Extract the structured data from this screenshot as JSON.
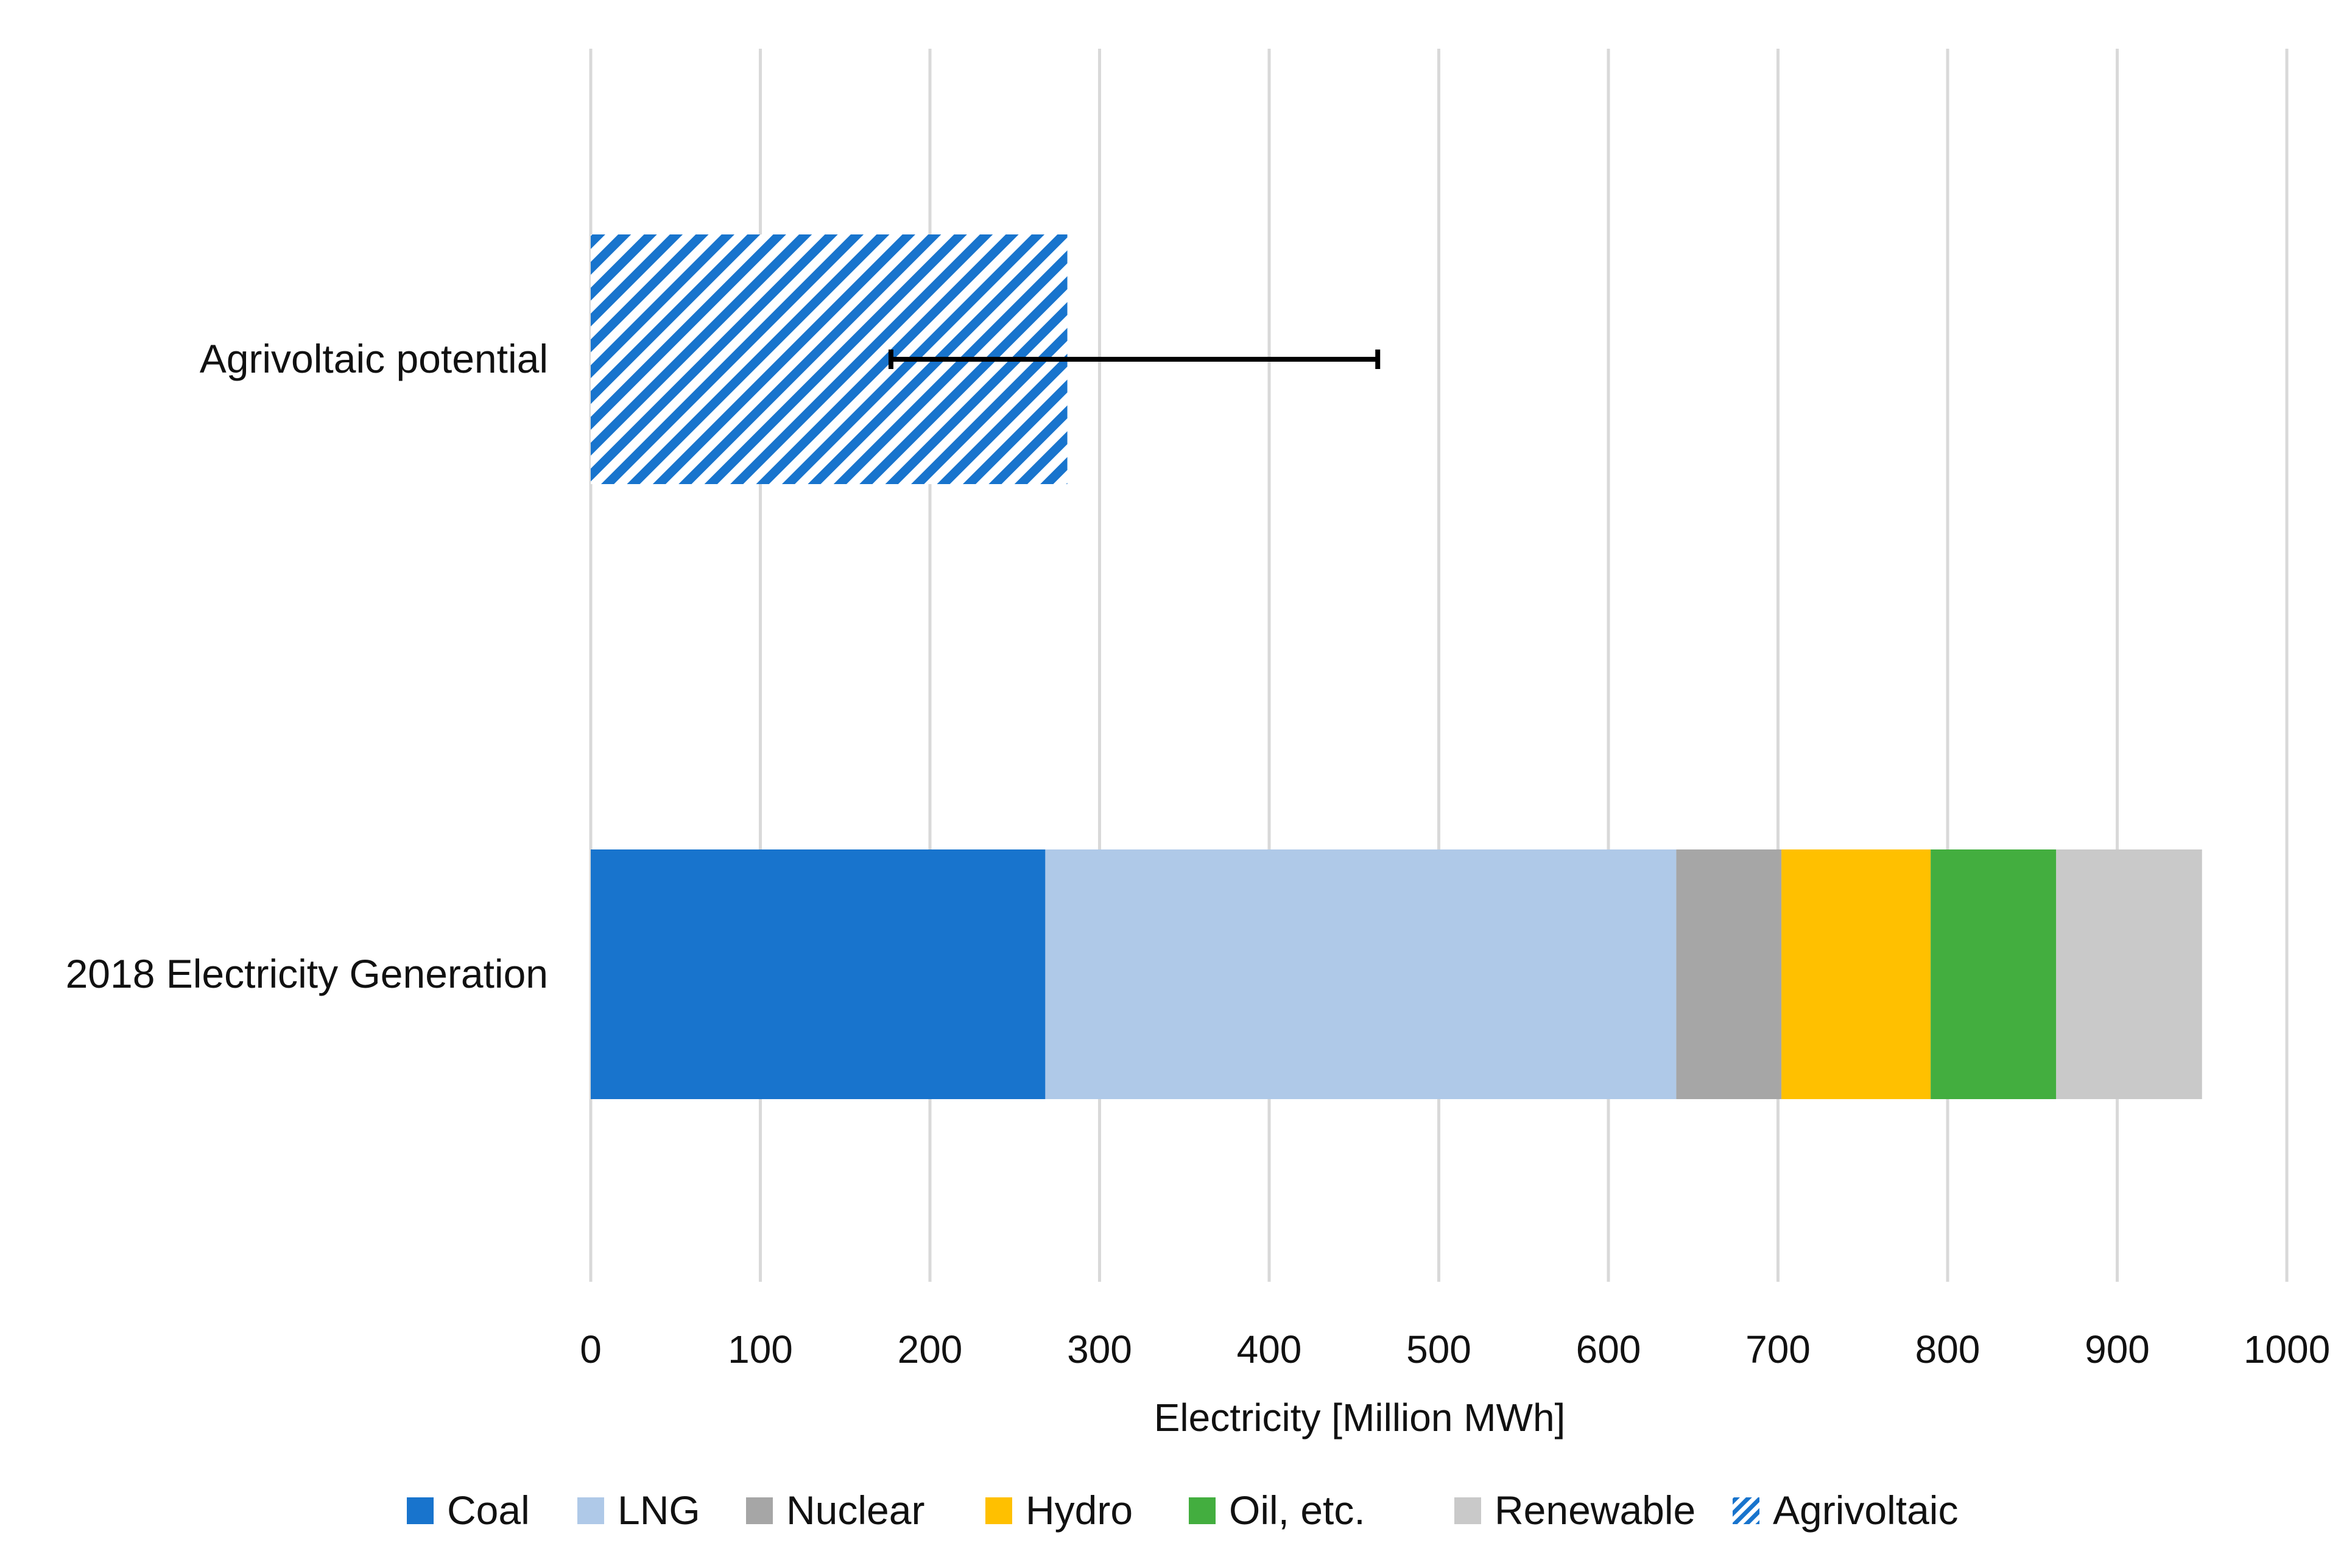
{
  "chart_data": {
    "type": "bar",
    "orientation": "horizontal",
    "stacked": true,
    "title": "",
    "xlabel": "Electricity [Million MWh]",
    "ylabel": "",
    "xlim": [
      0,
      1000
    ],
    "x_ticks": [
      0,
      100,
      200,
      300,
      400,
      500,
      600,
      700,
      800,
      900,
      1000
    ],
    "grid": true,
    "legend_position": "bottom",
    "categories": [
      "Agrivoltaic potential",
      "2018 Electricity Generation"
    ],
    "series": [
      {
        "name": "Coal",
        "color": "#1874CD",
        "values": [
          0,
          268
        ]
      },
      {
        "name": "LNG",
        "color": "#AFC9E8",
        "values": [
          0,
          372
        ]
      },
      {
        "name": "Nuclear",
        "color": "#A6A6A6",
        "values": [
          0,
          62
        ]
      },
      {
        "name": "Hydro",
        "color": "#FFC000",
        "values": [
          0,
          88
        ]
      },
      {
        "name": "Oil, etc.",
        "color": "#43AE3F",
        "values": [
          0,
          74
        ]
      },
      {
        "name": "Renewable",
        "color": "#C9C9C9",
        "values": [
          0,
          86
        ]
      },
      {
        "name": "Agrivoltaic",
        "color": "#1874CD",
        "pattern": "hatch",
        "values": [
          281,
          0
        ]
      }
    ],
    "error_bars": [
      {
        "category": "Agrivoltaic potential",
        "low": 177,
        "high": 464
      }
    ]
  }
}
